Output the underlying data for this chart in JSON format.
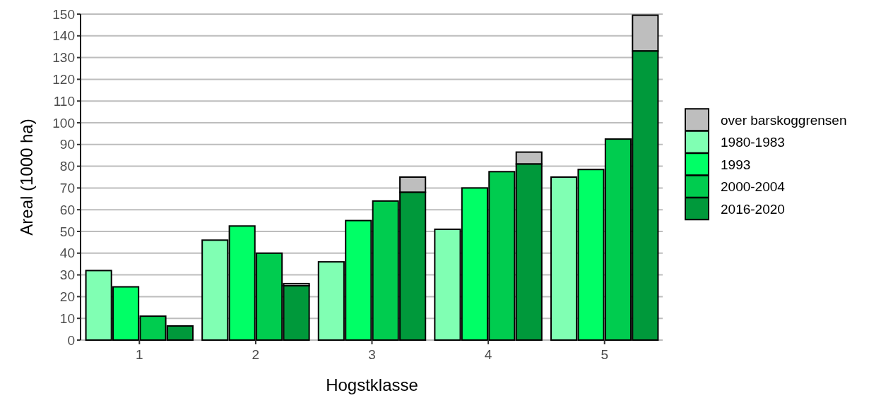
{
  "chart_data": {
    "type": "bar",
    "xlabel": "Hogstklasse",
    "ylabel": "Areal (1000 ha)",
    "categories": [
      "1",
      "2",
      "3",
      "4",
      "5"
    ],
    "series": [
      {
        "name": "over barskoggrensen",
        "color": "#bebebe",
        "values": [
          null,
          1,
          7,
          5.5,
          16.5
        ],
        "base": [
          null,
          25,
          68,
          81,
          133
        ]
      },
      {
        "name": "1980-1983",
        "color": "#80ffb3",
        "values": [
          32,
          46,
          36,
          51,
          75
        ]
      },
      {
        "name": "1993",
        "color": "#00ff66",
        "values": [
          24.5,
          52.5,
          55,
          70,
          78.5
        ]
      },
      {
        "name": "2000-2004",
        "color": "#00cc4f",
        "values": [
          11,
          40,
          64,
          77.5,
          92.5
        ]
      },
      {
        "name": "2016-2020",
        "color": "#00993b",
        "values": [
          6.5,
          25,
          68,
          81,
          133
        ]
      }
    ],
    "ylim": [
      0,
      150
    ],
    "yticks": [
      0,
      10,
      20,
      30,
      40,
      50,
      60,
      70,
      80,
      90,
      100,
      110,
      120,
      130,
      140,
      150
    ],
    "grid": "y",
    "legend": "right"
  }
}
